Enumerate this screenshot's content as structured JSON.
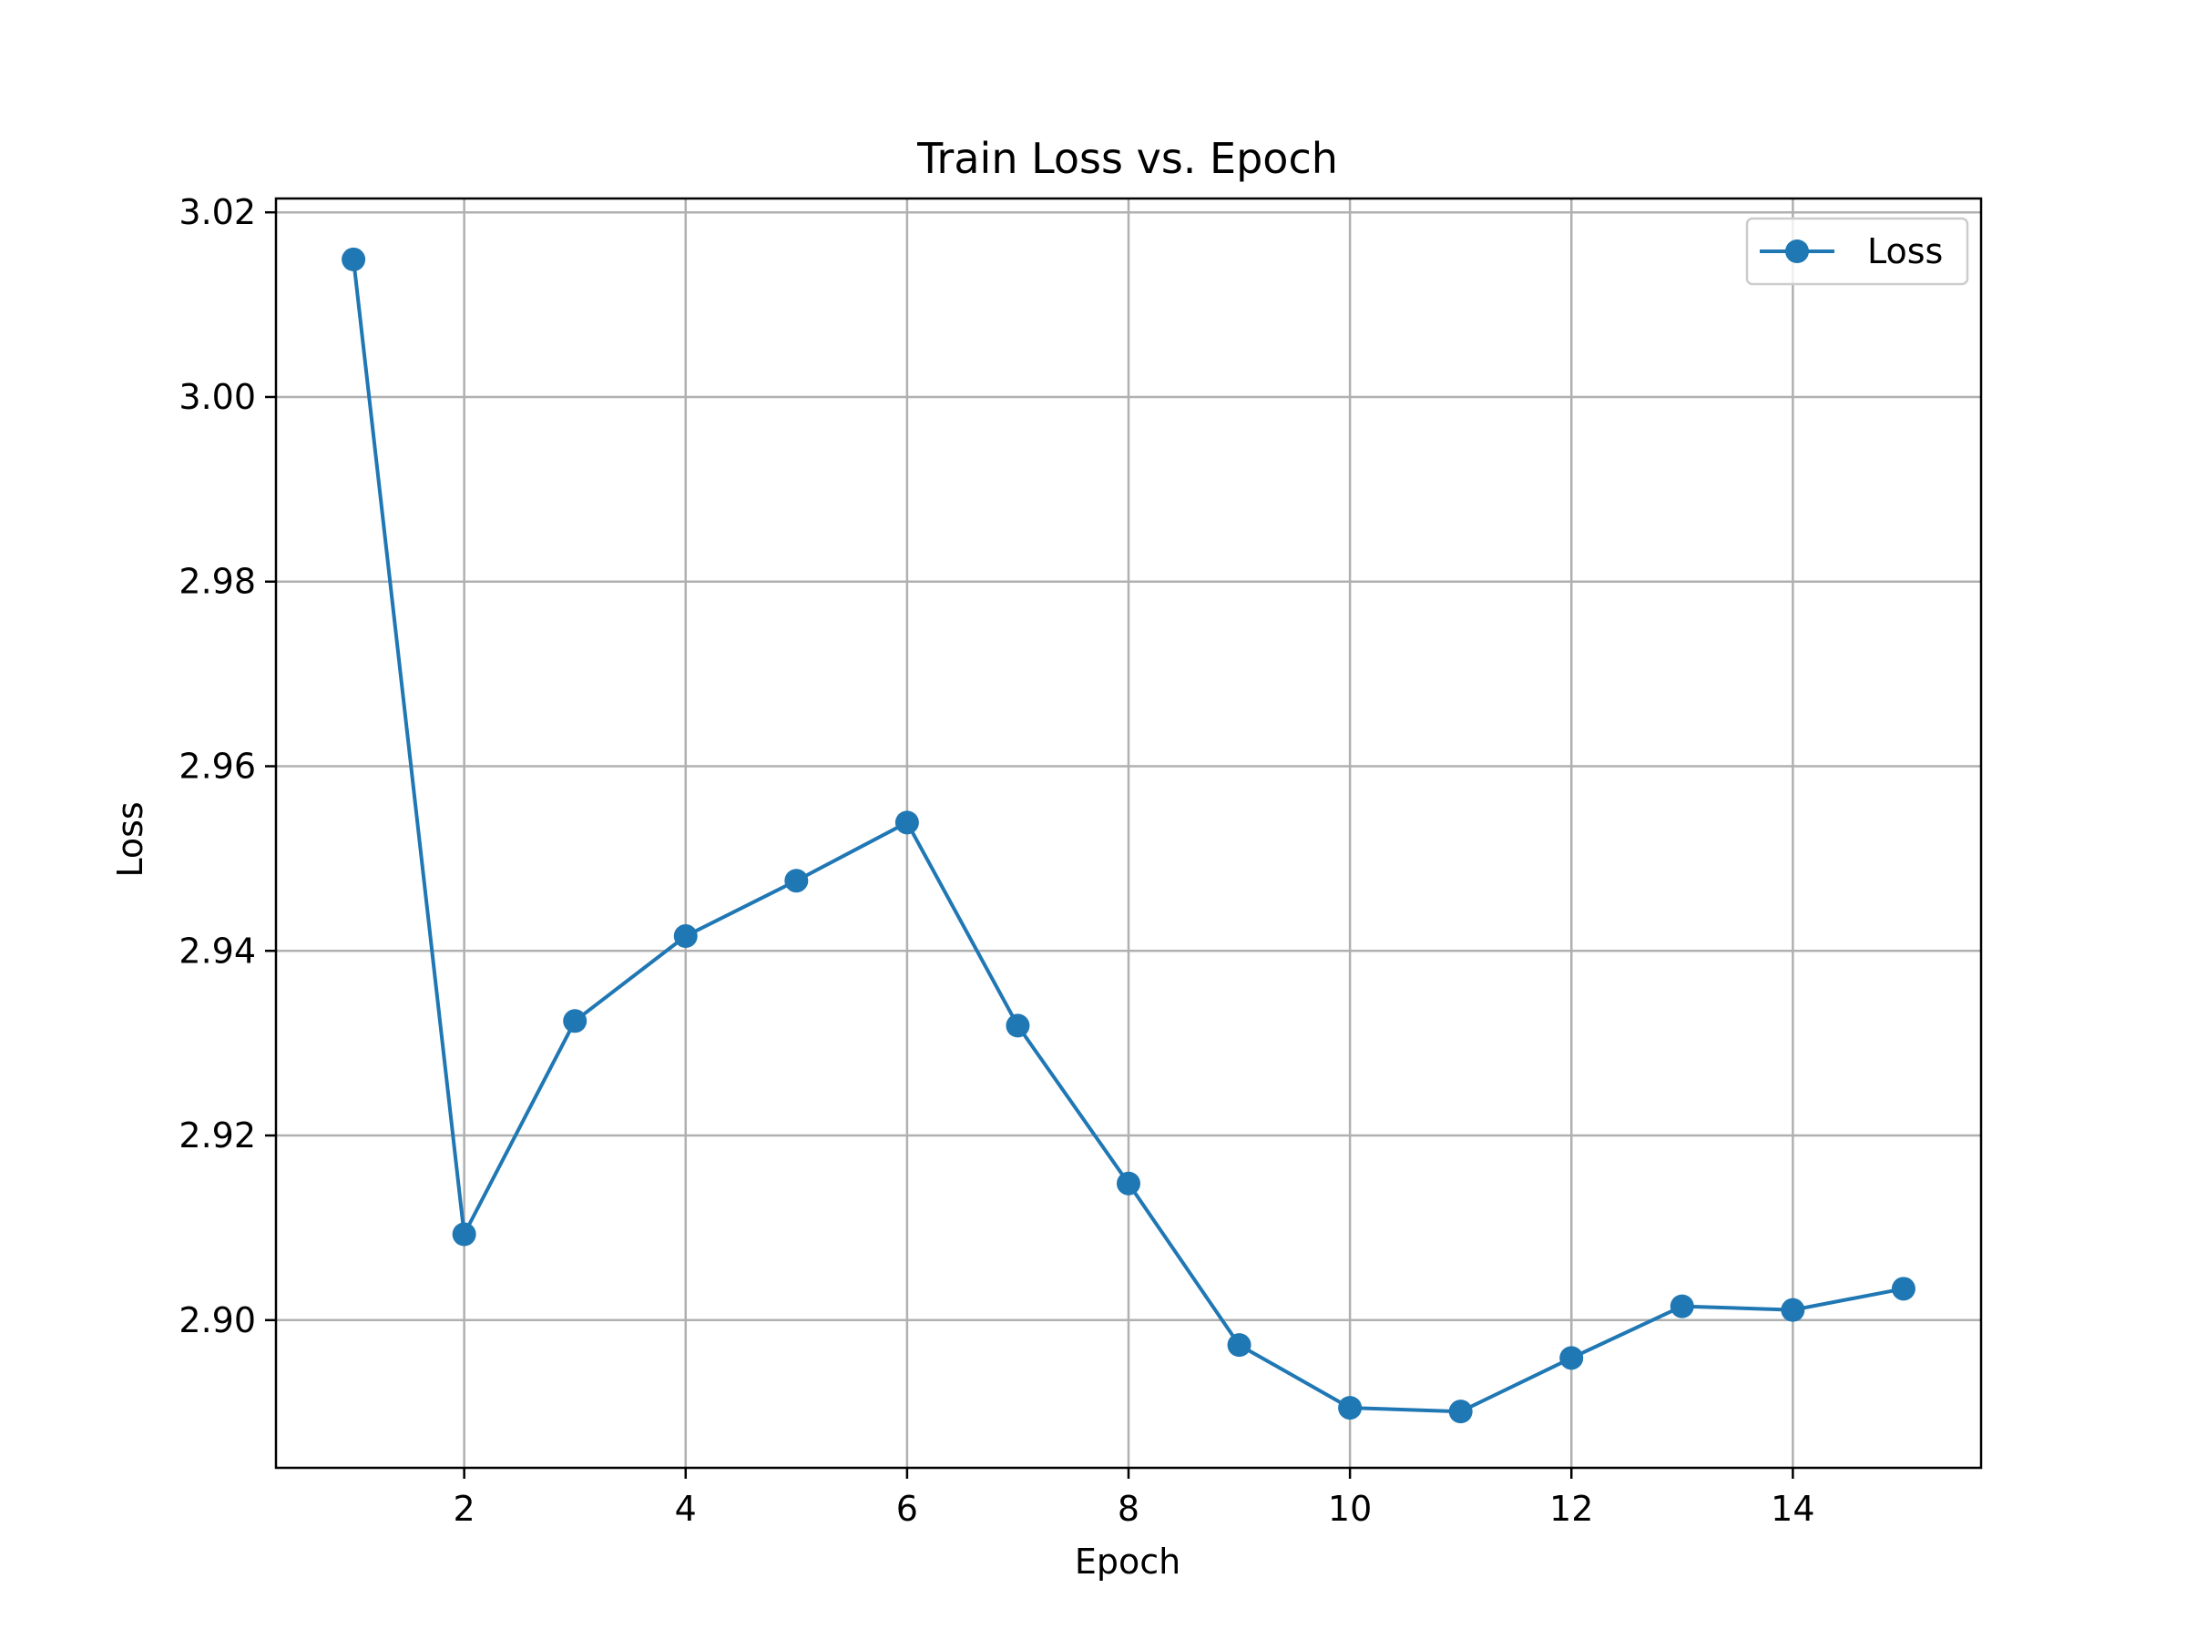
{
  "chart_data": {
    "type": "line",
    "title": "Train Loss vs. Epoch",
    "xlabel": "Epoch",
    "ylabel": "Loss",
    "xlim": [
      0.3,
      15.7
    ],
    "ylim": [
      2.884,
      3.0215
    ],
    "xticks": [
      2,
      4,
      6,
      8,
      10,
      12,
      14
    ],
    "xtick_labels": [
      "2",
      "4",
      "6",
      "8",
      "10",
      "12",
      "14"
    ],
    "yticks": [
      2.9,
      2.92,
      2.94,
      2.96,
      2.98,
      3.0,
      3.02
    ],
    "ytick_labels": [
      "2.90",
      "2.92",
      "2.94",
      "2.96",
      "2.98",
      "3.00",
      "3.02"
    ],
    "grid": true,
    "legend_position": "top-right",
    "colors": {
      "series": "#1f77b4",
      "grid": "#b0b0b0",
      "axes": "#000000"
    },
    "series": [
      {
        "name": "Loss",
        "marker": "circle",
        "x": [
          1,
          2,
          3,
          4,
          5,
          6,
          7,
          8,
          9,
          10,
          11,
          12,
          13,
          14,
          15
        ],
        "values": [
          3.0149,
          2.9093,
          2.9324,
          2.9416,
          2.9476,
          2.9539,
          2.9319,
          2.9148,
          2.8973,
          2.8905,
          2.8901,
          2.8959,
          2.9015,
          2.9011,
          2.9034
        ]
      }
    ]
  }
}
